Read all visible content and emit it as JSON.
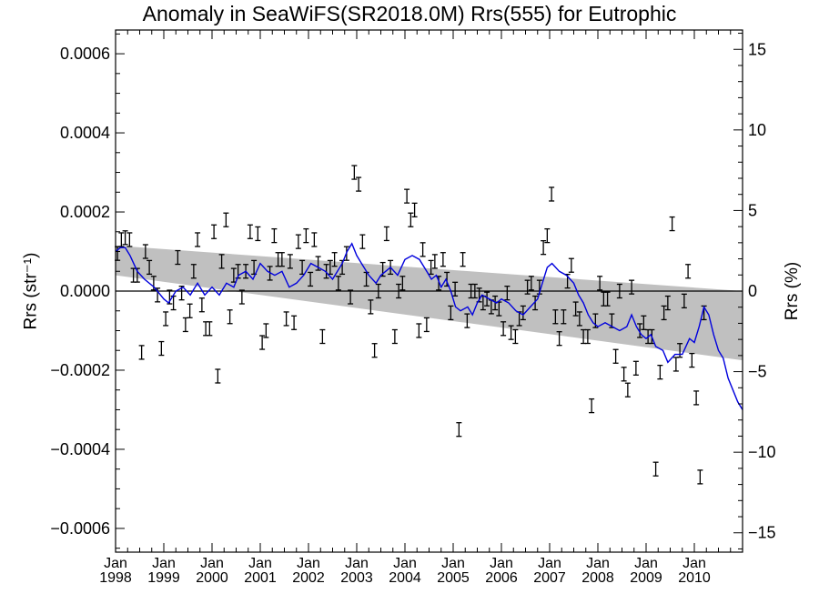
{
  "chart_data": {
    "type": "line",
    "title": "Anomaly in SeaWiFS(SR2018.0M) Rrs(555) for Eutrophic",
    "ylabel_left": "Rrs (str⁻¹)",
    "ylabel_right": "Rrs (%)",
    "x_range": [
      1998.0,
      2011.0
    ],
    "ylim_left": [
      -0.00066,
      0.00066
    ],
    "ylim_right": [
      -16.2,
      16.2
    ],
    "left_ticks": [
      "0.0006",
      "0.0004",
      "0.0002",
      "0.0000",
      "−0.0002",
      "−0.0004",
      "−0.0006"
    ],
    "left_tick_values": [
      0.0006,
      0.0004,
      0.0002,
      0.0,
      -0.0002,
      -0.0004,
      -0.0006
    ],
    "right_ticks": [
      "15",
      "10",
      "5",
      "0",
      "−5",
      "−10",
      "−15"
    ],
    "right_tick_values": [
      15,
      10,
      5,
      0,
      -5,
      -10,
      -15
    ],
    "x_ticks": [
      {
        "month": "Jan",
        "year": "1998",
        "x": 1998
      },
      {
        "month": "Jan",
        "year": "1999",
        "x": 1999
      },
      {
        "month": "Jan",
        "year": "2000",
        "x": 2000
      },
      {
        "month": "Jan",
        "year": "2001",
        "x": 2001
      },
      {
        "month": "Jan",
        "year": "2002",
        "x": 2002
      },
      {
        "month": "Jan",
        "year": "2003",
        "x": 2003
      },
      {
        "month": "Jan",
        "year": "2004",
        "x": 2004
      },
      {
        "month": "Jan",
        "year": "2005",
        "x": 2005
      },
      {
        "month": "Jan",
        "year": "2006",
        "x": 2006
      },
      {
        "month": "Jan",
        "year": "2007",
        "x": 2007
      },
      {
        "month": "Jan",
        "year": "2008",
        "x": 2008
      },
      {
        "month": "Jan",
        "year": "2009",
        "x": 2009
      },
      {
        "month": "Jan",
        "year": "2010",
        "x": 2010
      }
    ],
    "trend_band": {
      "color": "#c0c0c0",
      "upper": [
        [
          1998.0,
          0.000115
        ],
        [
          2011.0,
          0.0
        ]
      ],
      "lower": [
        [
          1998.0,
          4e-05
        ],
        [
          2011.0,
          -0.000175
        ]
      ]
    },
    "zero_line": 0.0,
    "running_mean": {
      "color": "#0000dd",
      "points": [
        [
          1998.0,
          0.0001
        ],
        [
          1998.1,
          0.00011
        ],
        [
          1998.2,
          0.00011
        ],
        [
          1998.3,
          9e-05
        ],
        [
          1998.45,
          5e-05
        ],
        [
          1998.6,
          3e-05
        ],
        [
          1998.8,
          1e-05
        ],
        [
          1999.0,
          -2e-05
        ],
        [
          1999.1,
          -3e-05
        ],
        [
          1999.25,
          0.0
        ],
        [
          1999.4,
          1e-05
        ],
        [
          1999.55,
          -1e-05
        ],
        [
          1999.7,
          2e-05
        ],
        [
          1999.85,
          -1e-05
        ],
        [
          2000.0,
          1e-05
        ],
        [
          2000.15,
          -1e-05
        ],
        [
          2000.3,
          2e-05
        ],
        [
          2000.45,
          1e-05
        ],
        [
          2000.55,
          4e-05
        ],
        [
          2000.7,
          5e-05
        ],
        [
          2000.85,
          3e-05
        ],
        [
          2001.0,
          7e-05
        ],
        [
          2001.15,
          5e-05
        ],
        [
          2001.3,
          4e-05
        ],
        [
          2001.45,
          5e-05
        ],
        [
          2001.6,
          1e-05
        ],
        [
          2001.75,
          2e-05
        ],
        [
          2001.9,
          4e-05
        ],
        [
          2002.05,
          7e-05
        ],
        [
          2002.2,
          6e-05
        ],
        [
          2002.35,
          5e-05
        ],
        [
          2002.5,
          3e-05
        ],
        [
          2002.6,
          5e-05
        ],
        [
          2002.7,
          7e-05
        ],
        [
          2002.8,
          0.0001
        ],
        [
          2002.9,
          0.00012
        ],
        [
          2003.0,
          9e-05
        ],
        [
          2003.1,
          7e-05
        ],
        [
          2003.25,
          4e-05
        ],
        [
          2003.4,
          2e-05
        ],
        [
          2003.5,
          4e-05
        ],
        [
          2003.6,
          5e-05
        ],
        [
          2003.7,
          6e-05
        ],
        [
          2003.85,
          4e-05
        ],
        [
          2004.0,
          8e-05
        ],
        [
          2004.15,
          9e-05
        ],
        [
          2004.3,
          8e-05
        ],
        [
          2004.45,
          5e-05
        ],
        [
          2004.55,
          3e-05
        ],
        [
          2004.65,
          4e-05
        ],
        [
          2004.75,
          1e-05
        ],
        [
          2004.85,
          3e-05
        ],
        [
          2004.95,
          0.0
        ],
        [
          2005.05,
          -4e-05
        ],
        [
          2005.15,
          -5e-05
        ],
        [
          2005.3,
          -4e-05
        ],
        [
          2005.4,
          -6e-05
        ],
        [
          2005.5,
          -3e-05
        ],
        [
          2005.6,
          -1e-05
        ],
        [
          2005.75,
          -2e-05
        ],
        [
          2005.9,
          -3e-05
        ],
        [
          2006.0,
          -2e-05
        ],
        [
          2006.15,
          -3e-05
        ],
        [
          2006.3,
          -5e-05
        ],
        [
          2006.45,
          -6e-05
        ],
        [
          2006.6,
          -4e-05
        ],
        [
          2006.75,
          -2e-05
        ],
        [
          2006.85,
          2e-05
        ],
        [
          2006.95,
          6e-05
        ],
        [
          2007.05,
          7e-05
        ],
        [
          2007.2,
          5e-05
        ],
        [
          2007.35,
          4e-05
        ],
        [
          2007.5,
          2e-05
        ],
        [
          2007.6,
          -1e-05
        ],
        [
          2007.7,
          -3e-05
        ],
        [
          2007.8,
          -6e-05
        ],
        [
          2007.9,
          -8e-05
        ],
        [
          2008.0,
          -9e-05
        ],
        [
          2008.15,
          -8e-05
        ],
        [
          2008.3,
          -9e-05
        ],
        [
          2008.45,
          -0.0001
        ],
        [
          2008.6,
          -9e-05
        ],
        [
          2008.7,
          -6e-05
        ],
        [
          2008.8,
          -9e-05
        ],
        [
          2008.9,
          -0.00011
        ],
        [
          2009.0,
          -0.00012
        ],
        [
          2009.1,
          -0.00011
        ],
        [
          2009.2,
          -0.00014
        ],
        [
          2009.35,
          -0.00015
        ],
        [
          2009.45,
          -0.00018
        ],
        [
          2009.6,
          -0.00016
        ],
        [
          2009.75,
          -0.00016
        ],
        [
          2009.9,
          -0.00012
        ],
        [
          2010.0,
          -0.00013
        ],
        [
          2010.1,
          -9e-05
        ],
        [
          2010.2,
          -4e-05
        ],
        [
          2010.3,
          -6e-05
        ],
        [
          2010.4,
          -0.00011
        ],
        [
          2010.5,
          -0.00015
        ],
        [
          2010.6,
          -0.00017
        ],
        [
          2010.7,
          -0.00022
        ],
        [
          2010.8,
          -0.00025
        ],
        [
          2010.9,
          -0.00028
        ],
        [
          2011.0,
          -0.0003
        ]
      ]
    },
    "monthly_points": [
      [
        1998.04,
        9.5e-05
      ],
      [
        1998.12,
        0.00013
      ],
      [
        1998.2,
        0.000135
      ],
      [
        1998.29,
        0.00013
      ],
      [
        1998.37,
        4e-05
      ],
      [
        1998.45,
        4e-05
      ],
      [
        1998.54,
        -0.000155
      ],
      [
        1998.62,
        0.0001
      ],
      [
        1998.7,
        6e-05
      ],
      [
        1998.79,
        2e-05
      ],
      [
        1998.87,
        -1e-05
      ],
      [
        1998.95,
        -0.000145
      ],
      [
        1999.04,
        -7e-05
      ],
      [
        1999.12,
        -1.5e-05
      ],
      [
        1999.2,
        -3e-05
      ],
      [
        1999.29,
        8.5e-05
      ],
      [
        1999.37,
        -5e-06
      ],
      [
        1999.45,
        -8.5e-05
      ],
      [
        1999.54,
        -5e-05
      ],
      [
        1999.62,
        5e-05
      ],
      [
        1999.7,
        0.00013
      ],
      [
        1999.79,
        -3.5e-05
      ],
      [
        1999.87,
        -9.5e-05
      ],
      [
        1999.95,
        -9.5e-05
      ],
      [
        2000.04,
        0.00015
      ],
      [
        2000.12,
        -0.000215
      ],
      [
        2000.2,
        7.5e-05
      ],
      [
        2000.29,
        0.00018
      ],
      [
        2000.37,
        -6.5e-05
      ],
      [
        2000.45,
        4e-05
      ],
      [
        2000.54,
        5e-05
      ],
      [
        2000.62,
        -1.5e-05
      ],
      [
        2000.7,
        5e-05
      ],
      [
        2000.79,
        0.00015
      ],
      [
        2000.87,
        6e-05
      ],
      [
        2000.95,
        0.000145
      ],
      [
        2001.04,
        -0.00013
      ],
      [
        2001.12,
        -0.0001
      ],
      [
        2001.2,
        4.5e-05
      ],
      [
        2001.29,
        0.00014
      ],
      [
        2001.37,
        8e-05
      ],
      [
        2001.45,
        8e-05
      ],
      [
        2001.54,
        -7e-05
      ],
      [
        2001.62,
        7.5e-05
      ],
      [
        2001.7,
        -8e-05
      ],
      [
        2001.79,
        0.000125
      ],
      [
        2001.87,
        6e-05
      ],
      [
        2001.95,
        0.00014
      ],
      [
        2002.04,
        3e-05
      ],
      [
        2002.12,
        0.00013
      ],
      [
        2002.2,
        7e-05
      ],
      [
        2002.29,
        -0.000115
      ],
      [
        2002.37,
        5e-05
      ],
      [
        2002.45,
        6e-05
      ],
      [
        2002.54,
        8e-05
      ],
      [
        2002.62,
        2e-05
      ],
      [
        2002.7,
        6e-05
      ],
      [
        2002.79,
        9.5e-05
      ],
      [
        2002.87,
        -1.5e-05
      ],
      [
        2002.95,
        0.0003
      ],
      [
        2003.04,
        0.00027
      ],
      [
        2003.12,
        0.000125
      ],
      [
        2003.2,
        3e-05
      ],
      [
        2003.29,
        -4e-05
      ],
      [
        2003.37,
        -0.00015
      ],
      [
        2003.45,
        0.0
      ],
      [
        2003.54,
        5.5e-05
      ],
      [
        2003.62,
        0.000145
      ],
      [
        2003.7,
        6e-05
      ],
      [
        2003.79,
        -0.000115
      ],
      [
        2003.87,
        0.0
      ],
      [
        2003.95,
        2e-05
      ],
      [
        2004.04,
        0.00024
      ],
      [
        2004.12,
        0.00018
      ],
      [
        2004.2,
        0.000205
      ],
      [
        2004.29,
        -0.0001
      ],
      [
        2004.37,
        0.000105
      ],
      [
        2004.45,
        -8.5e-05
      ],
      [
        2004.54,
        6e-05
      ],
      [
        2004.62,
        7.5e-05
      ],
      [
        2004.7,
        2e-05
      ],
      [
        2004.79,
        8e-05
      ],
      [
        2004.87,
        3e-05
      ],
      [
        2004.95,
        -5.5e-05
      ],
      [
        2005.04,
        5e-06
      ],
      [
        2005.12,
        -0.00035
      ],
      [
        2005.2,
        8e-05
      ],
      [
        2005.29,
        -7.5e-05
      ],
      [
        2005.37,
        0.0
      ],
      [
        2005.45,
        0.0
      ],
      [
        2005.54,
        -1e-05
      ],
      [
        2005.62,
        -3e-05
      ],
      [
        2005.7,
        -2e-05
      ],
      [
        2005.79,
        -4e-05
      ],
      [
        2005.87,
        -3e-05
      ],
      [
        2005.95,
        -4.5e-05
      ],
      [
        2006.04,
        -9.5e-05
      ],
      [
        2006.12,
        -5e-06
      ],
      [
        2006.2,
        -0.000105
      ],
      [
        2006.29,
        -0.000115
      ],
      [
        2006.37,
        -7e-05
      ],
      [
        2006.45,
        -5.5e-05
      ],
      [
        2006.54,
        1e-05
      ],
      [
        2006.62,
        2e-05
      ],
      [
        2006.7,
        -3e-05
      ],
      [
        2006.79,
        1e-05
      ],
      [
        2006.87,
        0.00011
      ],
      [
        2006.95,
        0.00014
      ],
      [
        2007.04,
        0.000245
      ],
      [
        2007.12,
        -6.5e-05
      ],
      [
        2007.2,
        -0.00012
      ],
      [
        2007.29,
        -6.5e-05
      ],
      [
        2007.37,
        2.5e-05
      ],
      [
        2007.45,
        6.5e-05
      ],
      [
        2007.54,
        -4.5e-05
      ],
      [
        2007.62,
        -7e-05
      ],
      [
        2007.7,
        -0.000115
      ],
      [
        2007.79,
        -0.000115
      ],
      [
        2007.87,
        -0.00029
      ],
      [
        2007.95,
        -7.5e-05
      ],
      [
        2008.04,
        2e-05
      ],
      [
        2008.12,
        -2e-05
      ],
      [
        2008.2,
        -2e-05
      ],
      [
        2008.29,
        -7.5e-05
      ],
      [
        2008.37,
        -0.000165
      ],
      [
        2008.45,
        0.0
      ],
      [
        2008.54,
        -0.00021
      ],
      [
        2008.62,
        -0.00025
      ],
      [
        2008.7,
        1e-05
      ],
      [
        2008.79,
        -0.000195
      ],
      [
        2008.87,
        -0.0001
      ],
      [
        2008.95,
        -8e-05
      ],
      [
        2009.04,
        -0.000115
      ],
      [
        2009.12,
        -0.000115
      ],
      [
        2009.2,
        -0.00045
      ],
      [
        2009.29,
        -0.000205
      ],
      [
        2009.37,
        -5.5e-05
      ],
      [
        2009.45,
        -3e-05
      ],
      [
        2009.54,
        0.00017
      ],
      [
        2009.62,
        -0.000185
      ],
      [
        2009.7,
        -0.00015
      ],
      [
        2009.79,
        -2.5e-05
      ],
      [
        2009.87,
        5e-05
      ],
      [
        2009.95,
        -0.000175
      ],
      [
        2010.04,
        -0.00027
      ],
      [
        2010.12,
        -0.00047
      ],
      [
        2010.2,
        -5.5e-05
      ]
    ]
  }
}
